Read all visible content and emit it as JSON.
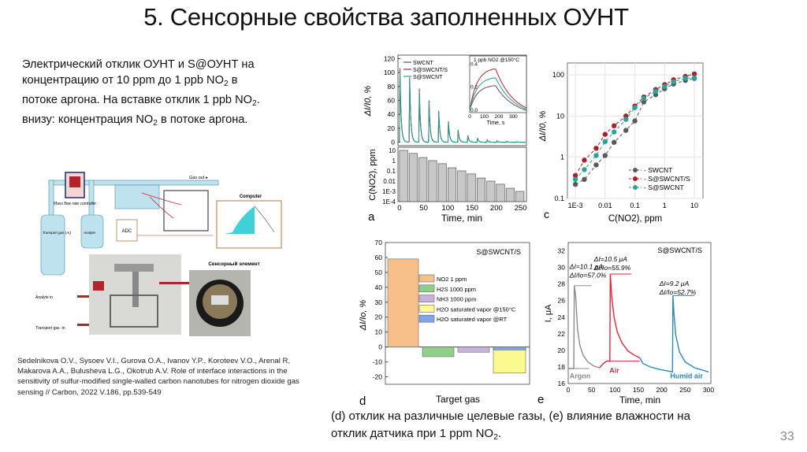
{
  "slide": {
    "title": "5. Сенсорные свойства заполненных ОУНТ",
    "intro_lines": [
      "Электрический отклик ОУНТ и S@ОУНТ на",
      "концентрацию от 10 ppm до 1 ppb NO",
      "потоке аргона. На вставке отклик 1 ppb NO",
      "внизу: концентрация NO",
      " в потоке аргона."
    ],
    "intro_suffix_1": " в",
    "intro_suffix_2": ".",
    "sub2": "2",
    "citation": "Sedelnikova O.V., Sysoev V.I., Gurova O.A., Ivanov Y.P., Koroteev V.O., Arenal R, Makarova A.A., Bulusheva L.G., Okotrub A.V. Role of interface interactions in the sensitivity of sulfur-modified single-walled carbon nanotubes for nitrogen dioxide gas sensing // Carbon, 2022 V.186, pp.539-549",
    "caption_line1": "(d) отклик на различные целевые газы, (e) влияние влажности на",
    "caption_line2": "отклик датчика при 1 ppm NO",
    "caption_end": ".",
    "page_number": "33"
  },
  "setup_diagram": {
    "gas_out": "Gas out ▸",
    "mfc": "Mass flow rate controller",
    "transport_gas": "Transport gas (Ar)",
    "analyte": "Analyte",
    "adc": "ADC",
    "computer": "Computer",
    "sensor_element": "Сенсорный элемент",
    "analyte_in": "Analyte in",
    "transport_gas_in": "Transport gas -in"
  },
  "chart_data": [
    {
      "type": "line",
      "panel": "a",
      "ylabel": "ΔI/I0, %",
      "ylim": [
        -5,
        125
      ],
      "yticks": [
        0,
        20,
        40,
        60,
        80,
        100,
        120
      ],
      "xlim": [
        -3,
        262
      ],
      "pulse_times": [
        0,
        20,
        40,
        60,
        80,
        100,
        120,
        140,
        160,
        180,
        200,
        220,
        240
      ],
      "series": [
        {
          "name": "SWCNT",
          "color": "#555555",
          "peaks": [
            98,
            88,
            70,
            55,
            42,
            28,
            16,
            9,
            5,
            3,
            1.5,
            1,
            0.5
          ]
        },
        {
          "name": "S@SWCNT/S",
          "color": "#b0282c",
          "peaks": [
            106,
            93,
            77,
            60,
            45,
            30,
            18,
            10,
            6,
            3.5,
            2,
            1,
            0.5
          ]
        },
        {
          "name": "S@SWCNT",
          "color": "#2a9d94",
          "peaks": [
            100,
            90,
            73,
            57,
            43,
            29,
            17,
            9.5,
            5.5,
            3,
            1.8,
            1,
            0.5
          ]
        }
      ],
      "inset": {
        "title": "1 ppb NO2 @150°C",
        "xlabel": "Time, s",
        "ylabel": "ΔI/I0, %",
        "xticks": [
          0,
          100,
          200,
          300
        ],
        "yticks": [
          0.0,
          0.2,
          0.4
        ],
        "peak_time": 175,
        "peaks": {
          "SWCNT": 0.22,
          "S@SWCNT/S": 0.37,
          "S@SWCNT": 0.29
        }
      }
    },
    {
      "type": "bar",
      "panel": "a-bottom",
      "xlabel": "Time, min",
      "ylabel": "C(NO2), ppm",
      "yscale": "log",
      "yticks": [
        "1E-4",
        "1E-3",
        "0.01",
        "0.1",
        "1",
        "10"
      ],
      "xticks": [
        0,
        50,
        100,
        150,
        200,
        250
      ],
      "x": [
        0,
        20,
        40,
        60,
        80,
        100,
        120,
        140,
        160,
        180,
        200,
        220,
        240
      ],
      "values": [
        10,
        5,
        2,
        1,
        0.5,
        0.2,
        0.1,
        0.05,
        0.02,
        0.01,
        0.005,
        0.002,
        0.001
      ],
      "panel_label": "a"
    },
    {
      "type": "scatter",
      "panel": "c",
      "xlabel": "C(NO2), ppm",
      "ylabel": "ΔI/I0, %",
      "xscale": "log",
      "yscale": "log",
      "xticks": [
        "1E-3",
        "0.01",
        "0.1",
        "1",
        "10"
      ],
      "yticks": [
        "0.1",
        "1",
        "10",
        "100"
      ],
      "grid": true,
      "legend": "bottom-right",
      "x": [
        0.001,
        0.002,
        0.005,
        0.01,
        0.02,
        0.05,
        0.1,
        0.2,
        0.5,
        1,
        2,
        5,
        10
      ],
      "series": [
        {
          "name": "SWCNT",
          "color": "#5a5a5a",
          "values": [
            0.22,
            0.29,
            0.65,
            1.1,
            2.3,
            4.5,
            7.6,
            22,
            33,
            46,
            60,
            73,
            82
          ]
        },
        {
          "name": "S@SWCNT/S",
          "color": "#a8202a",
          "values": [
            0.36,
            0.85,
            1.65,
            3.6,
            5.8,
            10,
            17.5,
            29,
            44,
            58,
            76,
            92,
            105
          ]
        },
        {
          "name": "S@SWCNT",
          "color": "#2aa39a",
          "values": [
            0.29,
            0.5,
            1.1,
            2.4,
            4.1,
            8.3,
            16,
            27,
            40,
            52,
            68,
            83,
            85
          ]
        }
      ],
      "panel_label": "c"
    },
    {
      "type": "bar",
      "panel": "d",
      "title": "S@SWCNT/S",
      "xlabel": "Target gas",
      "ylabel": "ΔI/Io, %",
      "ylim": [
        -25,
        70
      ],
      "yticks": [
        -20,
        -10,
        0,
        10,
        20,
        30,
        40,
        50,
        60,
        70
      ],
      "legend": "right",
      "series": [
        {
          "name": "NO2 1 ppm",
          "color": "#f7c08a",
          "value": 59
        },
        {
          "name": "H2S 1000 ppm",
          "color": "#8fcf8a",
          "value": -6.5
        },
        {
          "name": "NH3 1000 ppm",
          "color": "#c7b2db",
          "value": -3.5
        },
        {
          "name": "H2O saturated vapor @150°C",
          "color": "#fafa90",
          "value": -17.5
        },
        {
          "name": "H2O saturated vapor @RT",
          "color": "#7ea6e8",
          "value": -2
        }
      ],
      "panel_label": "d"
    },
    {
      "type": "line",
      "panel": "e",
      "title": "S@SWCNT/S",
      "xlabel": "Time, min",
      "ylabel": "I, μA",
      "xlim": [
        0,
        305
      ],
      "ylim": [
        16,
        33
      ],
      "xticks": [
        0,
        50,
        100,
        150,
        200,
        250,
        300
      ],
      "yticks": [
        16,
        18,
        20,
        22,
        24,
        26,
        28,
        30,
        32
      ],
      "segments": [
        {
          "name": "Argon",
          "color": "#8c8c8c",
          "points": [
            [
              0,
              17.8
            ],
            [
              12,
              17.8
            ],
            [
              13,
              27.8
            ],
            [
              16,
              26.5
            ],
            [
              20,
              22.5
            ],
            [
              25,
              20.6
            ],
            [
              32,
              19.4
            ],
            [
              42,
              18.6
            ],
            [
              55,
              18.1
            ],
            [
              67,
              17.9
            ]
          ]
        },
        {
          "name": "Air",
          "color": "#e0283a",
          "points": [
            [
              67,
              17.9
            ],
            [
              75,
              18.4
            ],
            [
              82,
              18.7
            ],
            [
              89,
              18.7
            ],
            [
              90,
              29.2
            ],
            [
              93,
              26.5
            ],
            [
              98,
              24
            ],
            [
              105,
              22.2
            ],
            [
              115,
              20.9
            ],
            [
              128,
              19.9
            ],
            [
              142,
              19.4
            ],
            [
              153,
              19.1
            ]
          ]
        },
        {
          "name": "Humid air",
          "color": "#2a86c4",
          "points": [
            [
              153,
              19.1
            ],
            [
              160,
              18.4
            ],
            [
              175,
              18
            ],
            [
              195,
              17.7
            ],
            [
              223,
              17.4
            ],
            [
              224,
              26.6
            ],
            [
              226,
              24.5
            ],
            [
              230,
              21.8
            ],
            [
              238,
              19.8
            ],
            [
              250,
              18.6
            ],
            [
              270,
              17.9
            ],
            [
              300,
              17.4
            ]
          ]
        }
      ],
      "annotations": [
        {
          "dI": "ΔI=10.1 μA",
          "rel": "ΔI/Io=57.0%"
        },
        {
          "dI": "ΔI=10.5 μA",
          "rel": "ΔI/Io=55.9%"
        },
        {
          "dI": "ΔI=9.2 μA",
          "rel": "ΔI/Io=52.7%"
        }
      ],
      "panel_label": "e"
    }
  ]
}
